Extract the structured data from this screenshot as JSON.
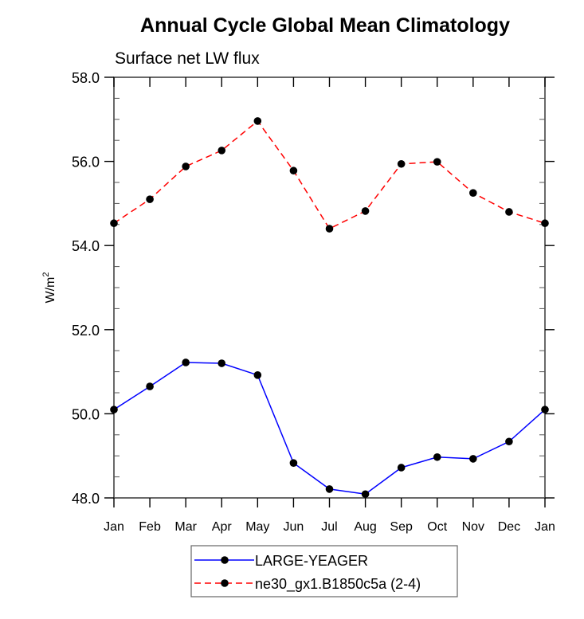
{
  "chart_data": {
    "type": "line",
    "title": "Annual Cycle Global Mean Climatology",
    "subtitle": "Surface net LW flux",
    "xlabel": "",
    "ylabel": "W/m",
    "ylabel_superscript": "2",
    "categories": [
      "Jan",
      "Feb",
      "Mar",
      "Apr",
      "May",
      "Jun",
      "Jul",
      "Aug",
      "Sep",
      "Oct",
      "Nov",
      "Dec",
      "Jan"
    ],
    "ylim": [
      48.0,
      58.0
    ],
    "yticks": [
      48.0,
      50.0,
      52.0,
      54.0,
      56.0,
      58.0
    ],
    "ytick_labels": [
      "48.0",
      "50.0",
      "52.0",
      "54.0",
      "56.0",
      "58.0"
    ],
    "yminor_step": 0.5,
    "grid": false,
    "legend_position": "bottom-center",
    "series": [
      {
        "name": "LARGE-YEAGER",
        "color": "#0000ff",
        "line_style": "solid",
        "marker": "filled-circle",
        "marker_color": "#000000",
        "values": [
          50.1,
          50.65,
          51.22,
          51.2,
          50.92,
          48.83,
          48.21,
          48.09,
          48.72,
          48.97,
          48.93,
          49.34,
          50.1
        ]
      },
      {
        "name": "ne30_gx1.B1850c5a (2-4)",
        "color": "#ff0000",
        "line_style": "dashed",
        "marker": "filled-circle",
        "marker_color": "#000000",
        "values": [
          54.53,
          55.1,
          55.88,
          56.26,
          56.96,
          55.78,
          54.4,
          54.82,
          55.94,
          55.99,
          55.25,
          54.8,
          54.53
        ]
      }
    ]
  }
}
